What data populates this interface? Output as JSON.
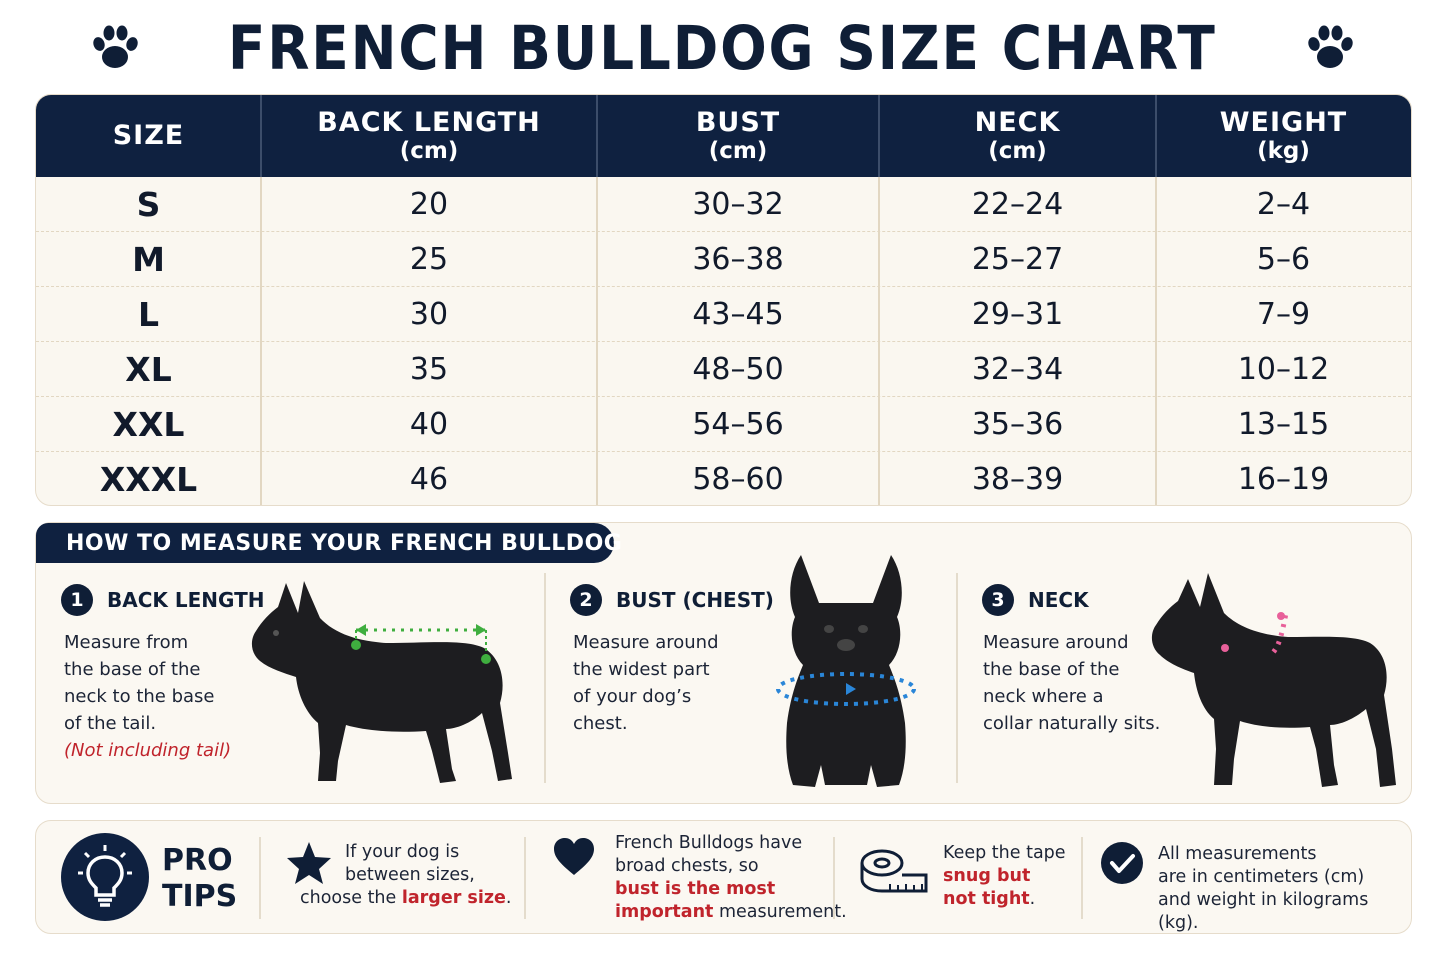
{
  "title": "FRENCH BULLDOG SIZE CHART",
  "table": {
    "headers": [
      {
        "label": "SIZE",
        "unit": ""
      },
      {
        "label": "BACK LENGTH",
        "unit": "(cm)"
      },
      {
        "label": "BUST",
        "unit": "(cm)"
      },
      {
        "label": "NECK",
        "unit": "(cm)"
      },
      {
        "label": "WEIGHT",
        "unit": "(kg)"
      }
    ],
    "rows": [
      [
        "S",
        "20",
        "30–32",
        "22–24",
        "2–4"
      ],
      [
        "M",
        "25",
        "36–38",
        "25–27",
        "5–6"
      ],
      [
        "L",
        "30",
        "43–45",
        "29–31",
        "7–9"
      ],
      [
        "XL",
        "35",
        "48–50",
        "32–34",
        "10–12"
      ],
      [
        "XXL",
        "40",
        "54–56",
        "35–36",
        "13–15"
      ],
      [
        "XXXL",
        "46",
        "58–60",
        "38–39",
        "16–19"
      ]
    ]
  },
  "measure": {
    "heading": "HOW TO MEASURE YOUR FRENCH BULLDOG",
    "steps": [
      {
        "num": "1",
        "title": "BACK LENGTH",
        "lines": [
          "Measure from",
          "the base of the",
          "neck to the base",
          "of the tail."
        ],
        "note": "(Not including tail)"
      },
      {
        "num": "2",
        "title": "BUST (CHEST)",
        "lines": [
          "Measure around",
          "the widest part",
          "of your dog’s",
          "chest."
        ]
      },
      {
        "num": "3",
        "title": "NECK",
        "lines": [
          "Measure around",
          "the base of the",
          "neck where a",
          "collar naturally sits."
        ]
      }
    ],
    "colors": {
      "back": "#3fae3f",
      "bust": "#2a86d8",
      "neck": "#e8609a"
    }
  },
  "tips": {
    "pro": "PRO",
    "tips_word": "TIPS",
    "items": [
      {
        "icon": "star-icon",
        "l1": "If your dog is",
        "l2": "between sizes,",
        "l3a": "choose the ",
        "l3b": "larger size",
        "l3c": "."
      },
      {
        "icon": "heart-icon",
        "l1": "French Bulldogs have",
        "l2": "broad chests, so",
        "l3": "bust is the most",
        "l4a": "important",
        "l4b": " measurement."
      },
      {
        "icon": "tape-measure-icon",
        "l1": "Keep the tape",
        "l2": "snug but",
        "l3a": "not tight",
        "l3b": "."
      },
      {
        "icon": "check-circle-icon",
        "l1": "All measurements",
        "l2": "are in centimeters (cm)",
        "l3": "and weight in kilograms (kg)."
      }
    ]
  },
  "accent": "#0f2140",
  "highlight": "#c0242c"
}
